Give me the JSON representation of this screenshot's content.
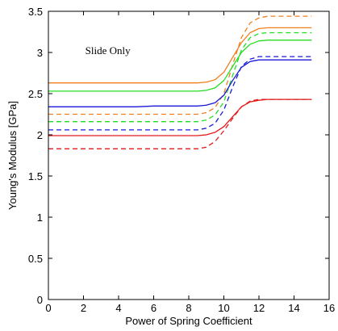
{
  "chart_data": {
    "type": "line",
    "xlabel": "Power of Spring Coefficient",
    "ylabel": "Young's Modulus [GPa]",
    "xlim": [
      0,
      16
    ],
    "ylim": [
      0,
      3.5
    ],
    "xticks": [
      0,
      2,
      4,
      6,
      8,
      10,
      12,
      14,
      16
    ],
    "yticks": [
      0,
      0.5,
      1,
      1.5,
      2,
      2.5,
      3,
      3.5
    ],
    "annotation": "Slide Only",
    "legend": "none",
    "grid": false,
    "series": [
      {
        "color": "#f07f1e",
        "dash": false,
        "x": [
          0,
          8.5,
          9,
          9.5,
          10,
          10.5,
          11,
          11.5,
          12,
          12.5,
          13,
          15
        ],
        "y": [
          2.63,
          2.63,
          2.64,
          2.67,
          2.76,
          2.94,
          3.12,
          3.24,
          3.29,
          3.3,
          3.3,
          3.3
        ]
      },
      {
        "color": "#f07f1e",
        "dash": true,
        "x": [
          0,
          8.5,
          9,
          9.5,
          10,
          10.5,
          11,
          11.5,
          12,
          12.5,
          13,
          15
        ],
        "y": [
          2.25,
          2.25,
          2.27,
          2.33,
          2.5,
          2.85,
          3.18,
          3.36,
          3.42,
          3.44,
          3.44,
          3.44
        ]
      },
      {
        "color": "#22dd22",
        "dash": false,
        "x": [
          0,
          8.5,
          9,
          9.5,
          10,
          10.5,
          11,
          11.5,
          12,
          12.5,
          13,
          15
        ],
        "y": [
          2.53,
          2.53,
          2.54,
          2.57,
          2.66,
          2.83,
          3.0,
          3.1,
          3.14,
          3.15,
          3.15,
          3.15
        ]
      },
      {
        "color": "#22dd22",
        "dash": true,
        "x": [
          0,
          8.5,
          9,
          9.5,
          10,
          10.5,
          11,
          11.5,
          12,
          12.5,
          13,
          15
        ],
        "y": [
          2.16,
          2.16,
          2.18,
          2.24,
          2.4,
          2.72,
          3.03,
          3.18,
          3.23,
          3.24,
          3.24,
          3.24
        ]
      },
      {
        "color": "#1a1ad8",
        "dash": false,
        "x": [
          0,
          5,
          6,
          8.5,
          9,
          9.5,
          10,
          10.5,
          11,
          11.5,
          12,
          12.5,
          13,
          15
        ],
        "y": [
          2.34,
          2.34,
          2.35,
          2.35,
          2.36,
          2.39,
          2.48,
          2.66,
          2.82,
          2.89,
          2.91,
          2.91,
          2.91,
          2.91
        ]
      },
      {
        "color": "#1a1ad8",
        "dash": true,
        "x": [
          0,
          8.5,
          9,
          9.5,
          10,
          10.5,
          11,
          11.5,
          12,
          12.5,
          13,
          15
        ],
        "y": [
          2.06,
          2.06,
          2.08,
          2.14,
          2.3,
          2.58,
          2.83,
          2.92,
          2.95,
          2.95,
          2.95,
          2.95
        ]
      },
      {
        "color": "#e31a1a",
        "dash": false,
        "x": [
          0,
          8.5,
          9,
          9.5,
          10,
          10.5,
          11,
          11.5,
          12,
          12.5,
          13,
          15
        ],
        "y": [
          1.99,
          1.99,
          2.0,
          2.03,
          2.1,
          2.22,
          2.34,
          2.4,
          2.42,
          2.43,
          2.43,
          2.43
        ]
      },
      {
        "color": "#e31a1a",
        "dash": true,
        "x": [
          0,
          8.5,
          9,
          9.5,
          10,
          10.5,
          11,
          11.5,
          12,
          12.5,
          13,
          15
        ],
        "y": [
          1.83,
          1.83,
          1.85,
          1.92,
          2.05,
          2.2,
          2.34,
          2.41,
          2.43,
          2.43,
          2.43,
          2.43
        ]
      }
    ]
  }
}
